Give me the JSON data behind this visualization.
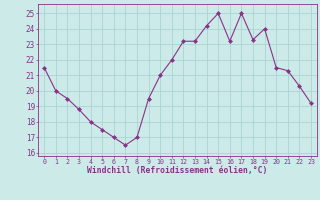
{
  "x": [
    0,
    1,
    2,
    3,
    4,
    5,
    6,
    7,
    8,
    9,
    10,
    11,
    12,
    13,
    14,
    15,
    16,
    17,
    18,
    19,
    20,
    21,
    22,
    23
  ],
  "y": [
    21.5,
    20.0,
    19.5,
    18.8,
    18.0,
    17.5,
    17.0,
    16.5,
    17.0,
    19.5,
    21.0,
    22.0,
    23.2,
    23.2,
    24.2,
    25.0,
    23.2,
    25.0,
    23.3,
    24.0,
    21.5,
    21.3,
    20.3,
    19.2
  ],
  "line_color": "#883388",
  "marker": "D",
  "marker_size": 2.5,
  "bg_color": "#cceae8",
  "grid_color": "#aad4d2",
  "xlabel": "Windchill (Refroidissement éolien,°C)",
  "xlabel_color": "#883388",
  "tick_color": "#883388",
  "ylim": [
    15.8,
    25.6
  ],
  "xlim": [
    -0.5,
    23.5
  ],
  "yticks": [
    16,
    17,
    18,
    19,
    20,
    21,
    22,
    23,
    24,
    25
  ],
  "xticks": [
    0,
    1,
    2,
    3,
    4,
    5,
    6,
    7,
    8,
    9,
    10,
    11,
    12,
    13,
    14,
    15,
    16,
    17,
    18,
    19,
    20,
    21,
    22,
    23
  ]
}
